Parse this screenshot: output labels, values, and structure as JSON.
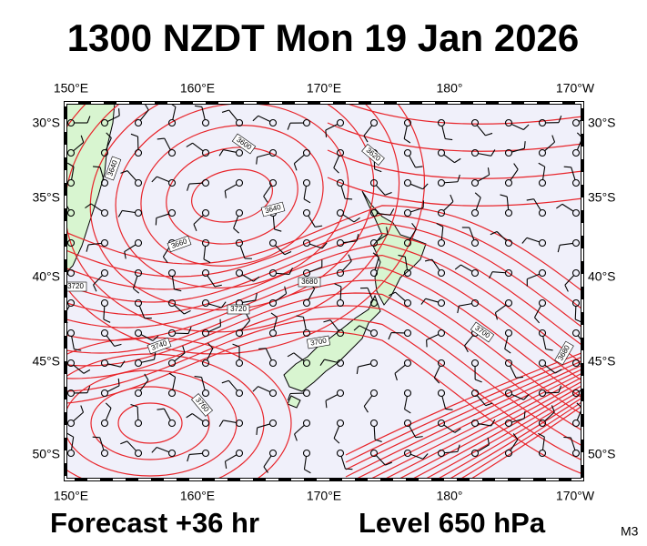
{
  "title": "1300 NZDT Mon 19 Jan 2026",
  "footer": {
    "forecast": "Forecast +36 hr",
    "level": "Level 650 hPa",
    "code": "M3"
  },
  "lon_labels": [
    "150°E",
    "160°E",
    "170°E",
    "180°",
    "170°W"
  ],
  "lat_labels": [
    "30°S",
    "35°S",
    "40°S",
    "45°S",
    "50°S"
  ],
  "contour_labels": [
    "3600",
    "3620",
    "3640",
    "3640",
    "3660",
    "3680",
    "3720",
    "3720",
    "3700",
    "3740",
    "3760",
    "3700",
    "3680"
  ]
}
